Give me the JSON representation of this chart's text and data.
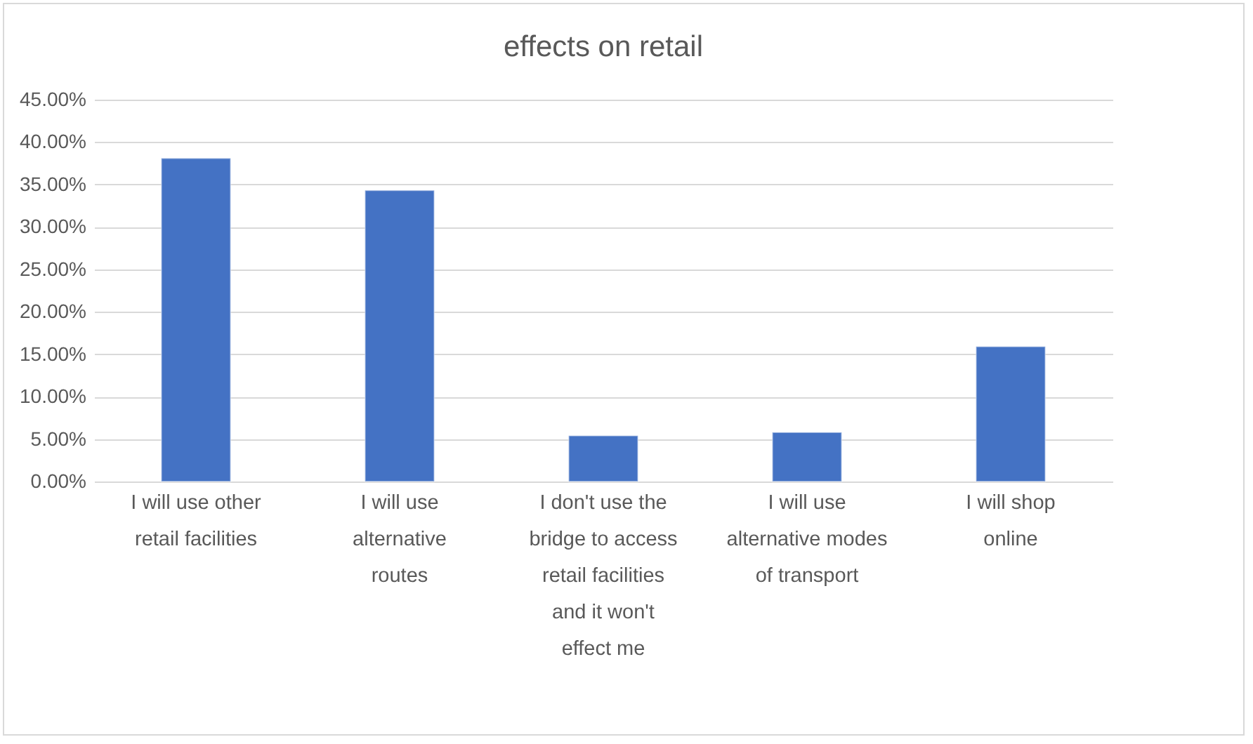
{
  "chart_data": {
    "type": "bar",
    "title": "effects on retail",
    "categories": [
      "I will use other retail facilities",
      "I will use alternative routes",
      "I don't use the bridge to access retail facilities and it won't effect me",
      "I will use alternative modes of transport",
      "I will shop online"
    ],
    "values": [
      38.1,
      34.3,
      5.4,
      5.8,
      15.9
    ],
    "color": "#4472c4",
    "ylim": [
      0,
      45
    ],
    "yticks": [
      {
        "value": 0,
        "label": "0.00%"
      },
      {
        "value": 5,
        "label": "5.00%"
      },
      {
        "value": 10,
        "label": "10.00%"
      },
      {
        "value": 15,
        "label": "15.00%"
      },
      {
        "value": 20,
        "label": "20.00%"
      },
      {
        "value": 25,
        "label": "25.00%"
      },
      {
        "value": 30,
        "label": "30.00%"
      },
      {
        "value": 35,
        "label": "35.00%"
      },
      {
        "value": 40,
        "label": "40.00%"
      },
      {
        "value": 45,
        "label": "45.00%"
      }
    ],
    "grid": "y"
  }
}
